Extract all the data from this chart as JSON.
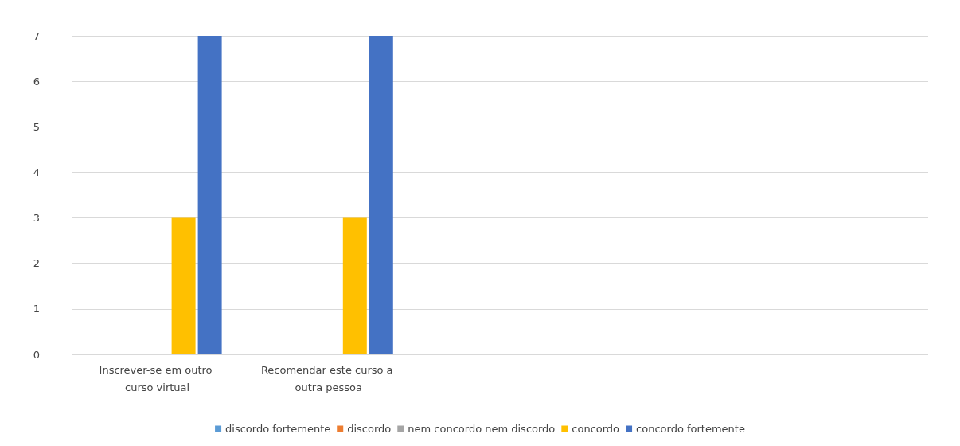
{
  "chart_data": {
    "type": "bar",
    "categories": [
      "Inscrever-se em outro curso virtual",
      "Recomendar este curso a outra pessoa",
      null,
      null,
      null
    ],
    "series": [
      {
        "name": "discordo fortemente",
        "color": "#5b9bd5",
        "values": [
          0,
          0,
          null,
          null,
          null
        ]
      },
      {
        "name": "discordo",
        "color": "#ed7d31",
        "values": [
          0,
          0,
          null,
          null,
          null
        ]
      },
      {
        "name": "nem concordo nem discordo",
        "color": "#a5a5a5",
        "values": [
          0,
          0,
          null,
          null,
          null
        ]
      },
      {
        "name": "concordo",
        "color": "#ffc000",
        "values": [
          3,
          3,
          null,
          null,
          null
        ]
      },
      {
        "name": "concordo fortemente",
        "color": "#4472c4",
        "values": [
          7,
          7,
          null,
          null,
          null
        ]
      }
    ],
    "ylim": [
      0,
      7
    ],
    "yticks": [
      0,
      1,
      2,
      3,
      4,
      5,
      6,
      7
    ],
    "grid": "y",
    "legend": "bottom"
  }
}
